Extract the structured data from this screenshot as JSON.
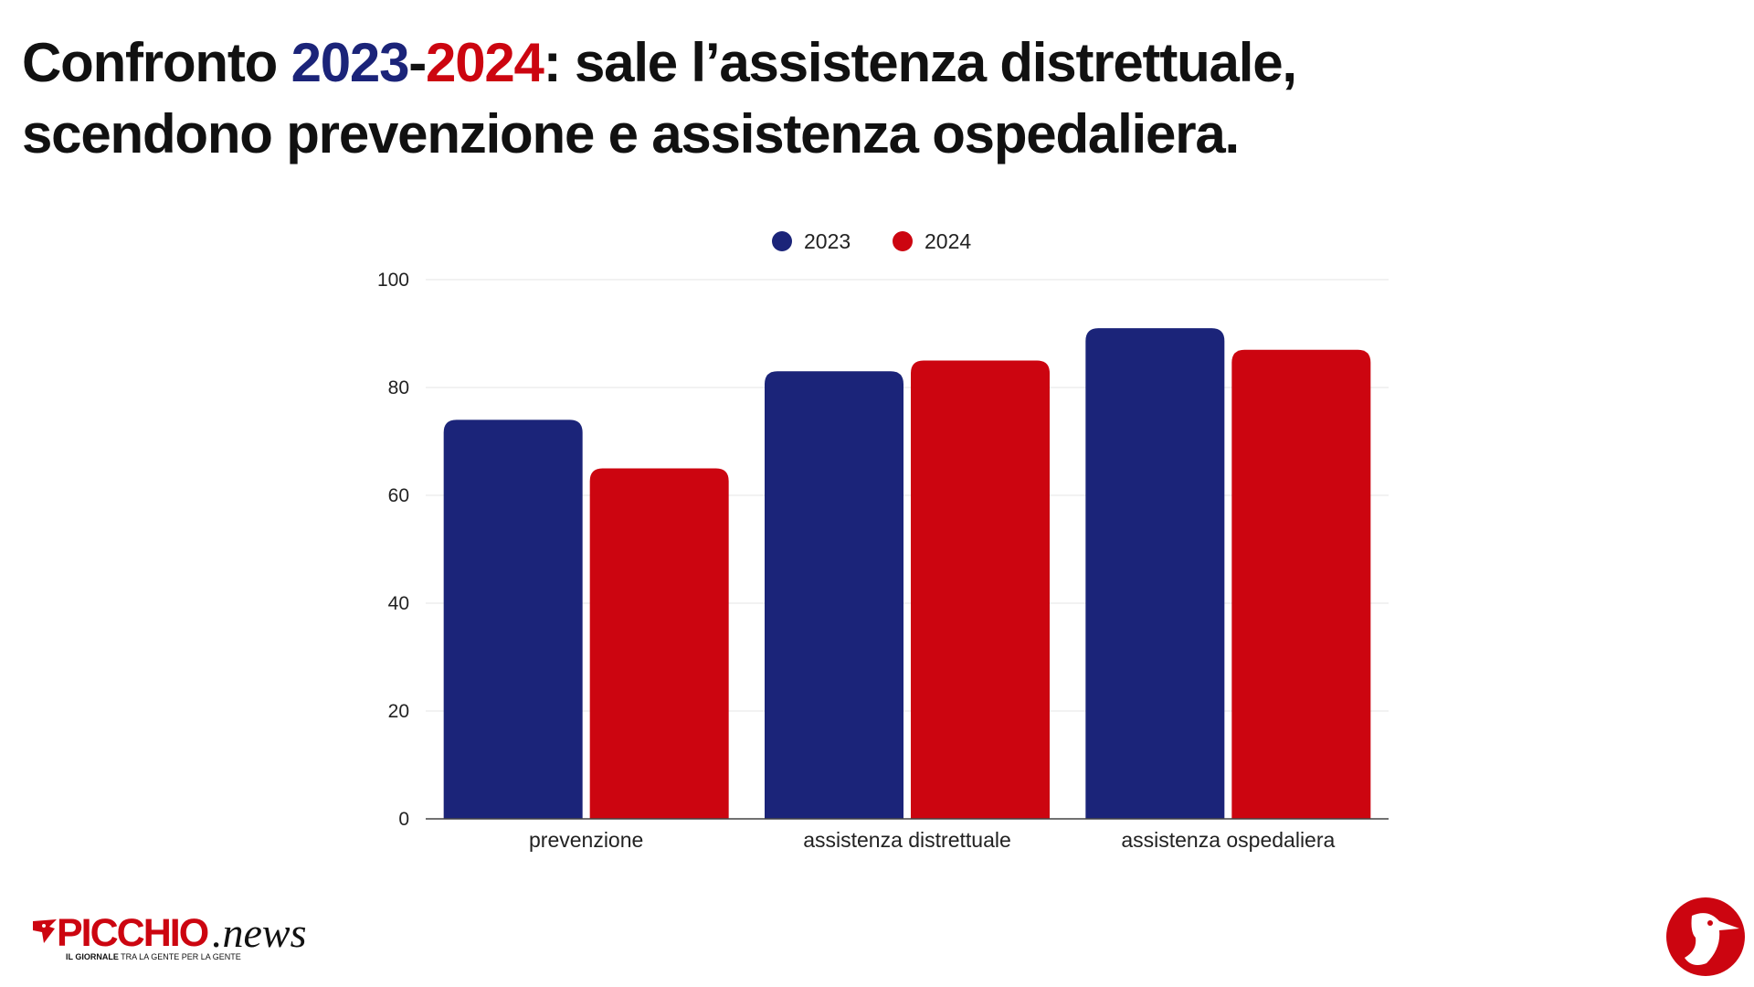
{
  "title": {
    "part1": "Confronto ",
    "year_a": "2023",
    "dash": "-",
    "year_b": "2024",
    "part2": ": sale l’assistenza distrettuale,",
    "line2": "scendono prevenzione e assistenza ospedaliera."
  },
  "chart_data": {
    "type": "bar",
    "categories": [
      "prevenzione",
      "assistenza distrettuale",
      "assistenza ospedaliera"
    ],
    "series": [
      {
        "name": "2023",
        "values": [
          74,
          83,
          91
        ],
        "color": "#1b2479"
      },
      {
        "name": "2024",
        "values": [
          65,
          85,
          87
        ],
        "color": "#cc0510"
      }
    ],
    "ylim": [
      0,
      100
    ],
    "yticks": [
      0,
      20,
      40,
      60,
      80,
      100
    ],
    "grid": true,
    "legend_position": "top-center"
  },
  "brand": {
    "logo_main": "PICCHIO",
    "logo_suffix": ".news",
    "tagline_bold": "IL GIORNALE",
    "tagline_rest": " TRA LA GENTE PER LA GENTE",
    "primary_color": "#cc0510",
    "badge_icon": "woodpecker-icon"
  }
}
